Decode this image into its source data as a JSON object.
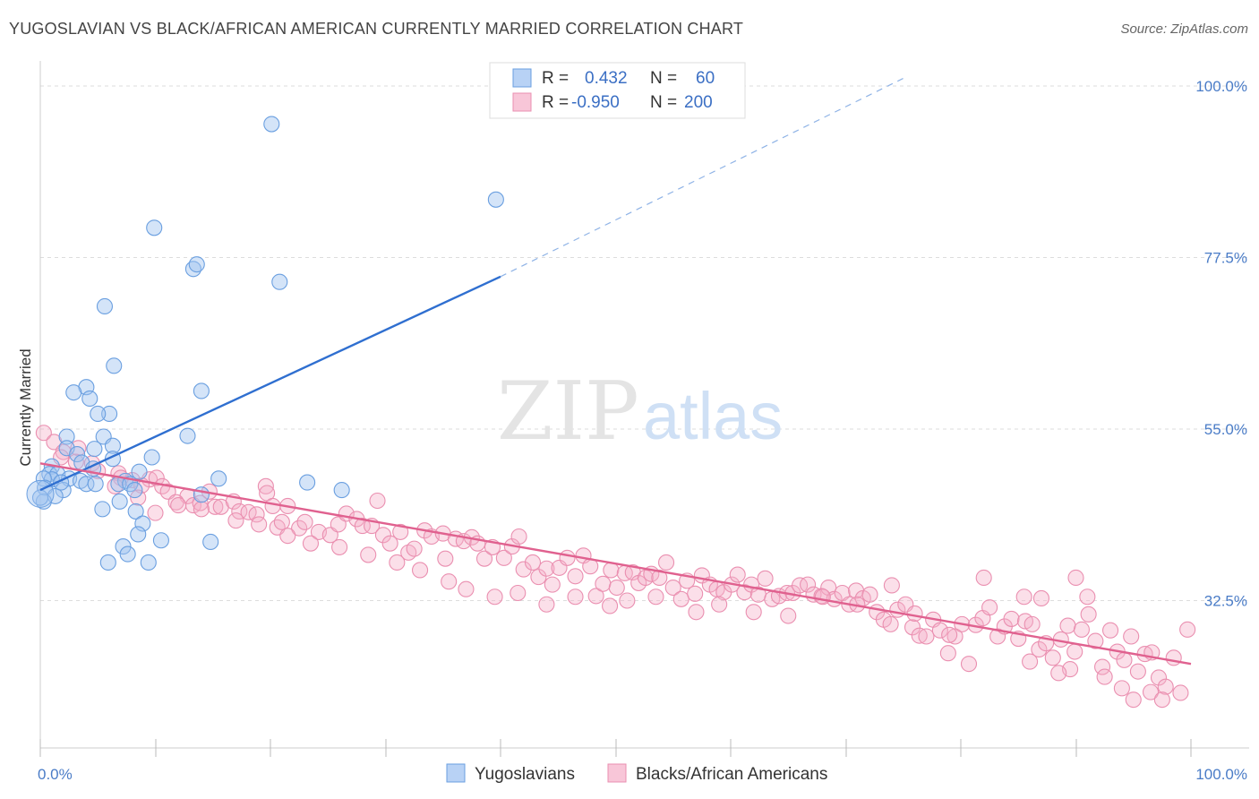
{
  "title": "YUGOSLAVIAN VS BLACK/AFRICAN AMERICAN CURRENTLY MARRIED CORRELATION CHART",
  "source": "Source: ZipAtlas.com",
  "watermark": {
    "zip": "ZIP",
    "atlas": "atlas"
  },
  "colors": {
    "blue": "#6a9fe0",
    "blue_fill": "rgba(160,195,240,0.45)",
    "blue_line": "#2f6fd0",
    "pink": "#ea8fb0",
    "pink_fill": "rgba(245,175,200,0.40)",
    "pink_line": "#e0618f",
    "tick": "#4a7cc7",
    "grid": "#dddddd"
  },
  "legend": {
    "rows": [
      {
        "r_label": "R =",
        "r_value": "0.432",
        "n_label": "N =",
        "n_value": "60"
      },
      {
        "r_label": "R =",
        "r_value": "-0.950",
        "n_label": "N =",
        "n_value": "200"
      }
    ]
  },
  "chart_data": {
    "type": "scatter",
    "title": "YUGOSLAVIAN VS BLACK/AFRICAN AMERICAN CURRENTLY MARRIED CORRELATION CHART",
    "xlabel": "",
    "ylabel": "Currently Married",
    "xlim": [
      0,
      100
    ],
    "ylim": [
      12,
      105
    ],
    "x_ticks": [
      "0.0%",
      "100.0%"
    ],
    "y_ticks": [
      {
        "value": 100.0,
        "label": "100.0%"
      },
      {
        "value": 77.5,
        "label": "77.5%"
      },
      {
        "value": 55.0,
        "label": "55.0%"
      },
      {
        "value": 32.5,
        "label": "32.5%"
      }
    ],
    "grid": true,
    "legend_position": "top-center",
    "series": [
      {
        "name": "Yugoslavians",
        "r": 0.432,
        "n": 60,
        "trend": {
          "x": [
            0,
            40.0
          ],
          "y": [
            47.0,
            75.0
          ],
          "dashed_to": [
            75.0,
            101.0
          ]
        },
        "points": [
          [
            20.1,
            95.0
          ],
          [
            39.6,
            85.1
          ],
          [
            9.9,
            81.4
          ],
          [
            13.3,
            76.0
          ],
          [
            13.6,
            76.6
          ],
          [
            20.8,
            74.3
          ],
          [
            5.6,
            71.1
          ],
          [
            6.4,
            63.3
          ],
          [
            4.0,
            60.5
          ],
          [
            2.9,
            59.8
          ],
          [
            4.3,
            59.0
          ],
          [
            14.0,
            60.0
          ],
          [
            6.0,
            57.0
          ],
          [
            5.0,
            57.0
          ],
          [
            5.5,
            54.0
          ],
          [
            2.3,
            54.0
          ],
          [
            12.8,
            54.1
          ],
          [
            6.3,
            52.8
          ],
          [
            2.3,
            52.5
          ],
          [
            4.7,
            52.4
          ],
          [
            3.2,
            51.7
          ],
          [
            9.7,
            51.3
          ],
          [
            6.3,
            51.1
          ],
          [
            1.0,
            50.1
          ],
          [
            3.6,
            50.6
          ],
          [
            8.6,
            49.4
          ],
          [
            4.6,
            49.8
          ],
          [
            0.8,
            49.1
          ],
          [
            1.5,
            49.1
          ],
          [
            1.0,
            48.4
          ],
          [
            2.5,
            48.5
          ],
          [
            3.5,
            48.2
          ],
          [
            0.3,
            48.5
          ],
          [
            15.5,
            48.5
          ],
          [
            23.2,
            48.0
          ],
          [
            4.0,
            47.8
          ],
          [
            4.8,
            47.8
          ],
          [
            7.4,
            48.2
          ],
          [
            6.8,
            47.8
          ],
          [
            7.8,
            47.8
          ],
          [
            0.4,
            47.3
          ],
          [
            2.0,
            47.0
          ],
          [
            26.2,
            47.0
          ],
          [
            14.0,
            46.4
          ],
          [
            8.2,
            47.0
          ],
          [
            1.3,
            46.2
          ],
          [
            0.3,
            45.5
          ],
          [
            6.9,
            45.5
          ],
          [
            5.4,
            44.5
          ],
          [
            8.3,
            44.2
          ],
          [
            8.9,
            42.6
          ],
          [
            8.5,
            41.2
          ],
          [
            10.5,
            40.4
          ],
          [
            14.8,
            40.2
          ],
          [
            7.2,
            39.6
          ],
          [
            7.6,
            38.6
          ],
          [
            5.9,
            37.5
          ],
          [
            9.4,
            37.5
          ],
          [
            0.0,
            46.0
          ],
          [
            1.8,
            48.0
          ]
        ]
      },
      {
        "name": "Blacks/African Americans",
        "r": -0.95,
        "n": 200,
        "trend": {
          "x": [
            0,
            100
          ],
          "y": [
            50.5,
            24.2
          ]
        },
        "points": [
          [
            0.3,
            54.5
          ],
          [
            1.2,
            53.3
          ],
          [
            2.0,
            52.0
          ],
          [
            3.3,
            52.5
          ],
          [
            1.8,
            51.3
          ],
          [
            4.5,
            50.5
          ],
          [
            3.1,
            50.7
          ],
          [
            5.0,
            49.5
          ],
          [
            6.8,
            49.2
          ],
          [
            8.0,
            48.3
          ],
          [
            7.0,
            48.6
          ],
          [
            9.5,
            48.4
          ],
          [
            10.1,
            48.6
          ],
          [
            8.8,
            47.6
          ],
          [
            10.6,
            47.5
          ],
          [
            6.5,
            47.5
          ],
          [
            12.8,
            46.2
          ],
          [
            11.1,
            46.8
          ],
          [
            11.8,
            45.4
          ],
          [
            13.3,
            45.0
          ],
          [
            13.9,
            45.3
          ],
          [
            14.7,
            46.8
          ],
          [
            15.2,
            44.8
          ],
          [
            15.7,
            44.8
          ],
          [
            16.8,
            45.5
          ],
          [
            17.3,
            44.2
          ],
          [
            18.1,
            44.1
          ],
          [
            18.8,
            43.8
          ],
          [
            19.6,
            47.5
          ],
          [
            19.7,
            46.6
          ],
          [
            20.2,
            44.9
          ],
          [
            21.5,
            44.9
          ],
          [
            20.6,
            42.1
          ],
          [
            21.0,
            42.8
          ],
          [
            22.5,
            42.0
          ],
          [
            23.0,
            42.8
          ],
          [
            24.2,
            41.5
          ],
          [
            25.2,
            41.1
          ],
          [
            25.9,
            42.5
          ],
          [
            26.6,
            43.9
          ],
          [
            27.5,
            43.2
          ],
          [
            28.0,
            42.3
          ],
          [
            28.8,
            42.3
          ],
          [
            29.3,
            45.6
          ],
          [
            29.8,
            41.1
          ],
          [
            30.4,
            40.0
          ],
          [
            31.3,
            41.5
          ],
          [
            32.0,
            38.8
          ],
          [
            32.5,
            39.3
          ],
          [
            33.4,
            41.7
          ],
          [
            34.0,
            40.9
          ],
          [
            35.0,
            41.3
          ],
          [
            35.2,
            38.0
          ],
          [
            36.1,
            40.6
          ],
          [
            36.8,
            40.3
          ],
          [
            37.5,
            40.8
          ],
          [
            38.0,
            40.0
          ],
          [
            38.6,
            38.0
          ],
          [
            39.3,
            39.5
          ],
          [
            40.3,
            38.1
          ],
          [
            41.0,
            39.6
          ],
          [
            41.6,
            40.9
          ],
          [
            42.0,
            36.6
          ],
          [
            42.8,
            37.5
          ],
          [
            43.3,
            35.6
          ],
          [
            44.0,
            36.7
          ],
          [
            44.5,
            34.6
          ],
          [
            45.1,
            36.8
          ],
          [
            45.8,
            38.1
          ],
          [
            46.5,
            35.7
          ],
          [
            47.2,
            38.4
          ],
          [
            47.8,
            37.0
          ],
          [
            48.3,
            33.1
          ],
          [
            48.9,
            34.7
          ],
          [
            49.6,
            36.5
          ],
          [
            50.1,
            34.2
          ],
          [
            50.8,
            36.1
          ],
          [
            51.5,
            36.2
          ],
          [
            52.0,
            34.8
          ],
          [
            52.6,
            35.5
          ],
          [
            53.1,
            36.0
          ],
          [
            53.8,
            35.5
          ],
          [
            54.4,
            37.5
          ],
          [
            55.0,
            34.2
          ],
          [
            55.7,
            32.7
          ],
          [
            56.2,
            35.1
          ],
          [
            56.9,
            33.4
          ],
          [
            57.5,
            35.8
          ],
          [
            58.2,
            34.6
          ],
          [
            58.8,
            34.0
          ],
          [
            59.4,
            33.6
          ],
          [
            60.1,
            34.6
          ],
          [
            60.6,
            35.9
          ],
          [
            61.2,
            33.6
          ],
          [
            61.8,
            34.6
          ],
          [
            62.4,
            33.3
          ],
          [
            63.0,
            35.4
          ],
          [
            63.6,
            32.7
          ],
          [
            64.2,
            33.1
          ],
          [
            64.9,
            33.5
          ],
          [
            65.4,
            33.5
          ],
          [
            66.0,
            34.5
          ],
          [
            66.7,
            34.6
          ],
          [
            67.2,
            33.3
          ],
          [
            67.9,
            33.1
          ],
          [
            68.5,
            34.2
          ],
          [
            69.0,
            32.7
          ],
          [
            69.7,
            33.5
          ],
          [
            70.3,
            32.0
          ],
          [
            70.9,
            33.8
          ],
          [
            71.5,
            32.8
          ],
          [
            72.1,
            33.3
          ],
          [
            72.7,
            31.0
          ],
          [
            73.3,
            30.0
          ],
          [
            73.9,
            29.4
          ],
          [
            74.5,
            31.3
          ],
          [
            75.2,
            32.0
          ],
          [
            75.8,
            29.0
          ],
          [
            76.4,
            27.9
          ],
          [
            77.0,
            27.8
          ],
          [
            77.6,
            30.0
          ],
          [
            78.2,
            28.6
          ],
          [
            78.9,
            25.6
          ],
          [
            79.5,
            27.8
          ],
          [
            80.1,
            29.4
          ],
          [
            80.7,
            24.2
          ],
          [
            81.3,
            29.3
          ],
          [
            81.9,
            30.2
          ],
          [
            82.5,
            31.6
          ],
          [
            83.2,
            27.8
          ],
          [
            83.8,
            29.1
          ],
          [
            84.4,
            30.1
          ],
          [
            85.0,
            27.5
          ],
          [
            85.6,
            29.8
          ],
          [
            86.2,
            29.4
          ],
          [
            86.8,
            26.1
          ],
          [
            87.4,
            26.9
          ],
          [
            88.0,
            25.0
          ],
          [
            88.7,
            27.4
          ],
          [
            89.3,
            29.2
          ],
          [
            89.9,
            25.8
          ],
          [
            90.5,
            28.7
          ],
          [
            91.1,
            30.7
          ],
          [
            91.7,
            27.2
          ],
          [
            92.3,
            23.8
          ],
          [
            93.0,
            28.6
          ],
          [
            93.6,
            25.8
          ],
          [
            94.2,
            24.7
          ],
          [
            94.8,
            27.8
          ],
          [
            95.4,
            23.2
          ],
          [
            96.0,
            25.5
          ],
          [
            96.6,
            25.7
          ],
          [
            97.2,
            22.4
          ],
          [
            97.8,
            21.2
          ],
          [
            98.5,
            25.0
          ],
          [
            99.1,
            20.4
          ],
          [
            99.7,
            28.7
          ],
          [
            91.0,
            33.0
          ],
          [
            90.0,
            35.5
          ],
          [
            87.0,
            32.8
          ],
          [
            85.5,
            33.0
          ],
          [
            82.0,
            35.5
          ],
          [
            79.0,
            28.0
          ],
          [
            76.0,
            30.8
          ],
          [
            74.0,
            34.5
          ],
          [
            71.0,
            32.0
          ],
          [
            68.0,
            33.0
          ],
          [
            65.0,
            30.5
          ],
          [
            62.0,
            31.0
          ],
          [
            59.0,
            32.0
          ],
          [
            57.0,
            31.0
          ],
          [
            53.5,
            33.0
          ],
          [
            51.0,
            32.5
          ],
          [
            49.5,
            31.8
          ],
          [
            46.5,
            33.0
          ],
          [
            44.0,
            32.0
          ],
          [
            41.5,
            33.5
          ],
          [
            39.5,
            33.0
          ],
          [
            37.0,
            34.0
          ],
          [
            35.5,
            35.0
          ],
          [
            33.0,
            36.5
          ],
          [
            31.0,
            37.5
          ],
          [
            28.5,
            38.5
          ],
          [
            26.0,
            39.5
          ],
          [
            23.5,
            40.0
          ],
          [
            21.5,
            41.0
          ],
          [
            19.0,
            42.5
          ],
          [
            17.0,
            43.0
          ],
          [
            14.0,
            44.5
          ],
          [
            12.0,
            45.0
          ],
          [
            10.0,
            44.0
          ],
          [
            8.5,
            46.0
          ],
          [
            96.5,
            20.5
          ],
          [
            95.0,
            19.5
          ],
          [
            94.0,
            21.0
          ],
          [
            92.5,
            22.5
          ],
          [
            97.5,
            19.5
          ],
          [
            89.5,
            23.5
          ],
          [
            88.5,
            23.0
          ],
          [
            86.0,
            24.5
          ]
        ]
      }
    ]
  }
}
